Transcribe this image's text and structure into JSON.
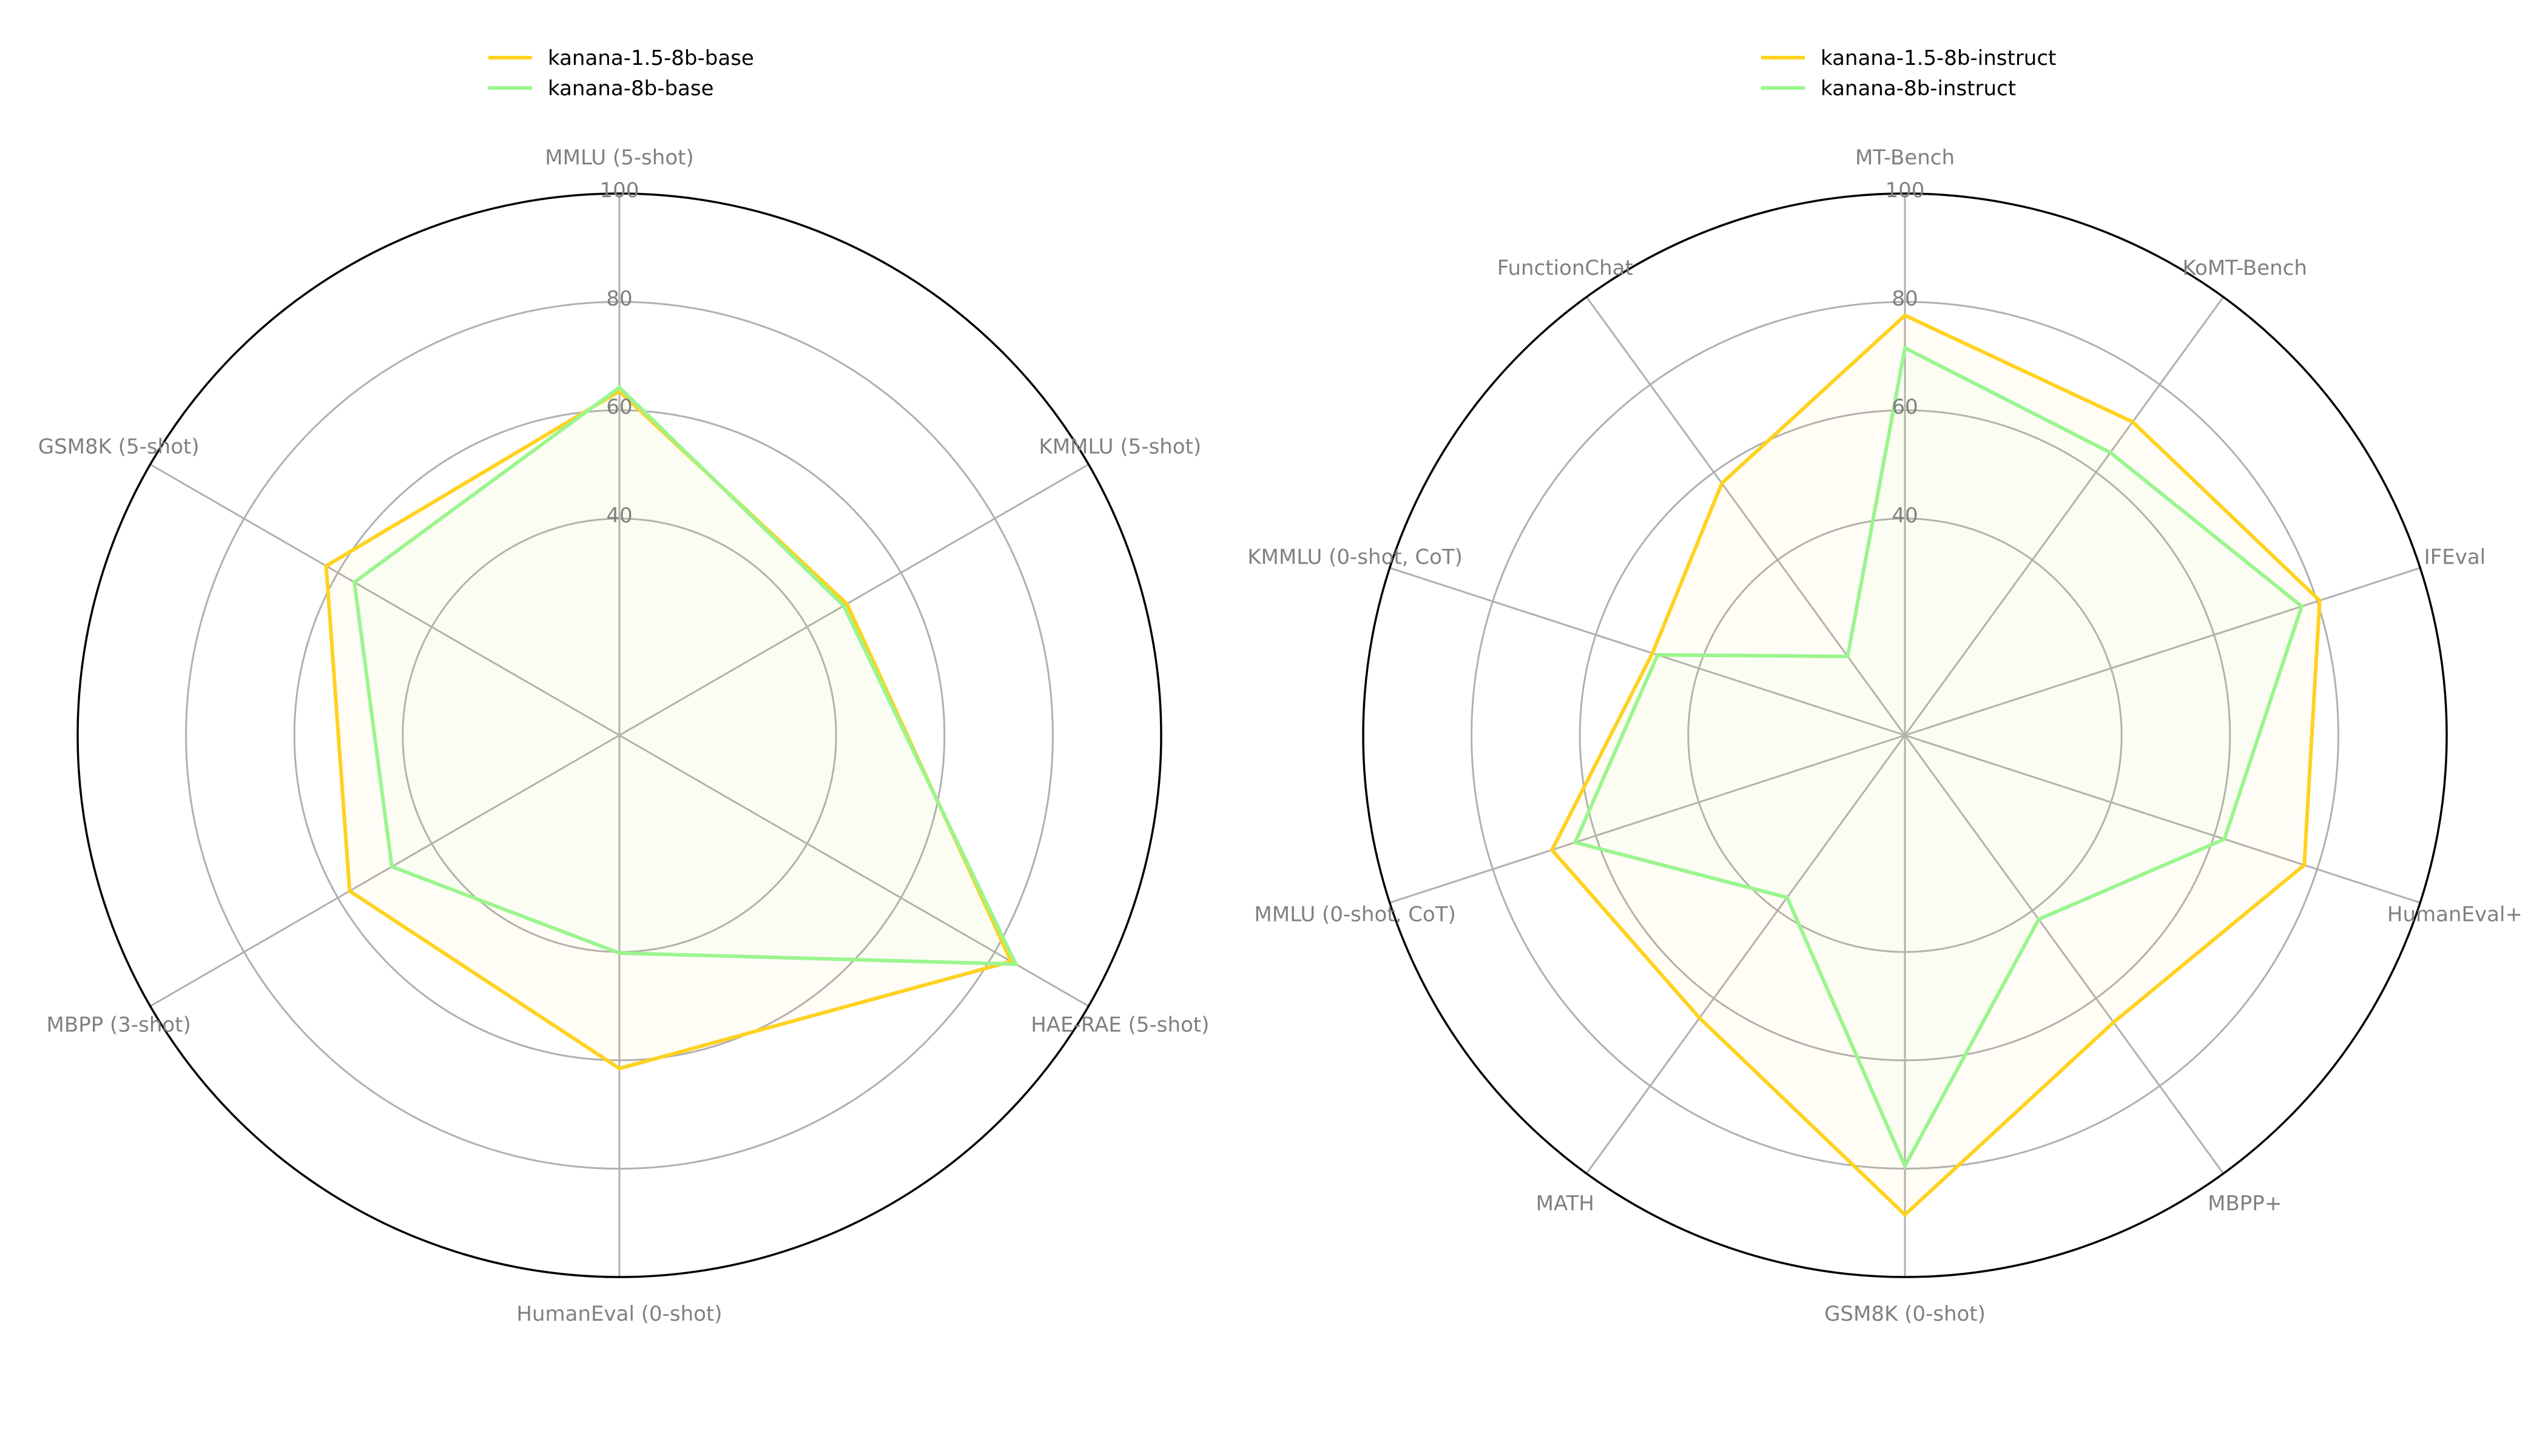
{
  "chart_data": [
    {
      "type": "radar",
      "rlim": [
        0,
        100
      ],
      "rticks": [
        "40",
        "60",
        "80",
        "100"
      ],
      "rtick_values": [
        40,
        60,
        80,
        100
      ],
      "axes": [
        "MMLU (5-shot)",
        "KMMLU (5-shot)",
        "HAE-RAE (5-shot)",
        "HumanEval (0-shot)",
        "MBPP (3-shot)",
        "GSM8K (5-shot)"
      ],
      "series": [
        {
          "name": "kanana-1.5-8b-base",
          "color": "#FFD21F",
          "values": [
            63.5,
            48.5,
            83.5,
            61.5,
            57.5,
            62.5
          ]
        },
        {
          "name": "kanana-8b-base",
          "color": "#9BF58F",
          "values": [
            64.2,
            47.8,
            84.5,
            40.2,
            48.5,
            56.5
          ]
        }
      ],
      "legend_position": "top-left",
      "grid": true
    },
    {
      "type": "radar",
      "rlim": [
        0,
        100
      ],
      "rticks": [
        "40",
        "60",
        "80",
        "100"
      ],
      "rtick_values": [
        40,
        60,
        80,
        100
      ],
      "axes": [
        "MT-Bench",
        "KoMT-Bench",
        "IFEval",
        "HumanEval+",
        "MBPP+",
        "GSM8K (0-shot)",
        "MATH",
        "MMLU (0-shot, CoT)",
        "KMMLU (0-shot, CoT)",
        "FunctionChat"
      ],
      "series": [
        {
          "name": "kanana-1.5-8b-instruct",
          "color": "#FFD21F",
          "values": [
            77.5,
            71.5,
            80.5,
            77.5,
            65.5,
            88.5,
            64.5,
            68.5,
            49.0,
            57.5
          ]
        },
        {
          "name": "kanana-8b-instruct",
          "color": "#9BF58F",
          "values": [
            71.5,
            64.5,
            77.0,
            62.0,
            42.0,
            79.5,
            37.0,
            64.0,
            48.0,
            18.0
          ]
        }
      ],
      "legend_position": "top-left",
      "grid": true
    }
  ]
}
